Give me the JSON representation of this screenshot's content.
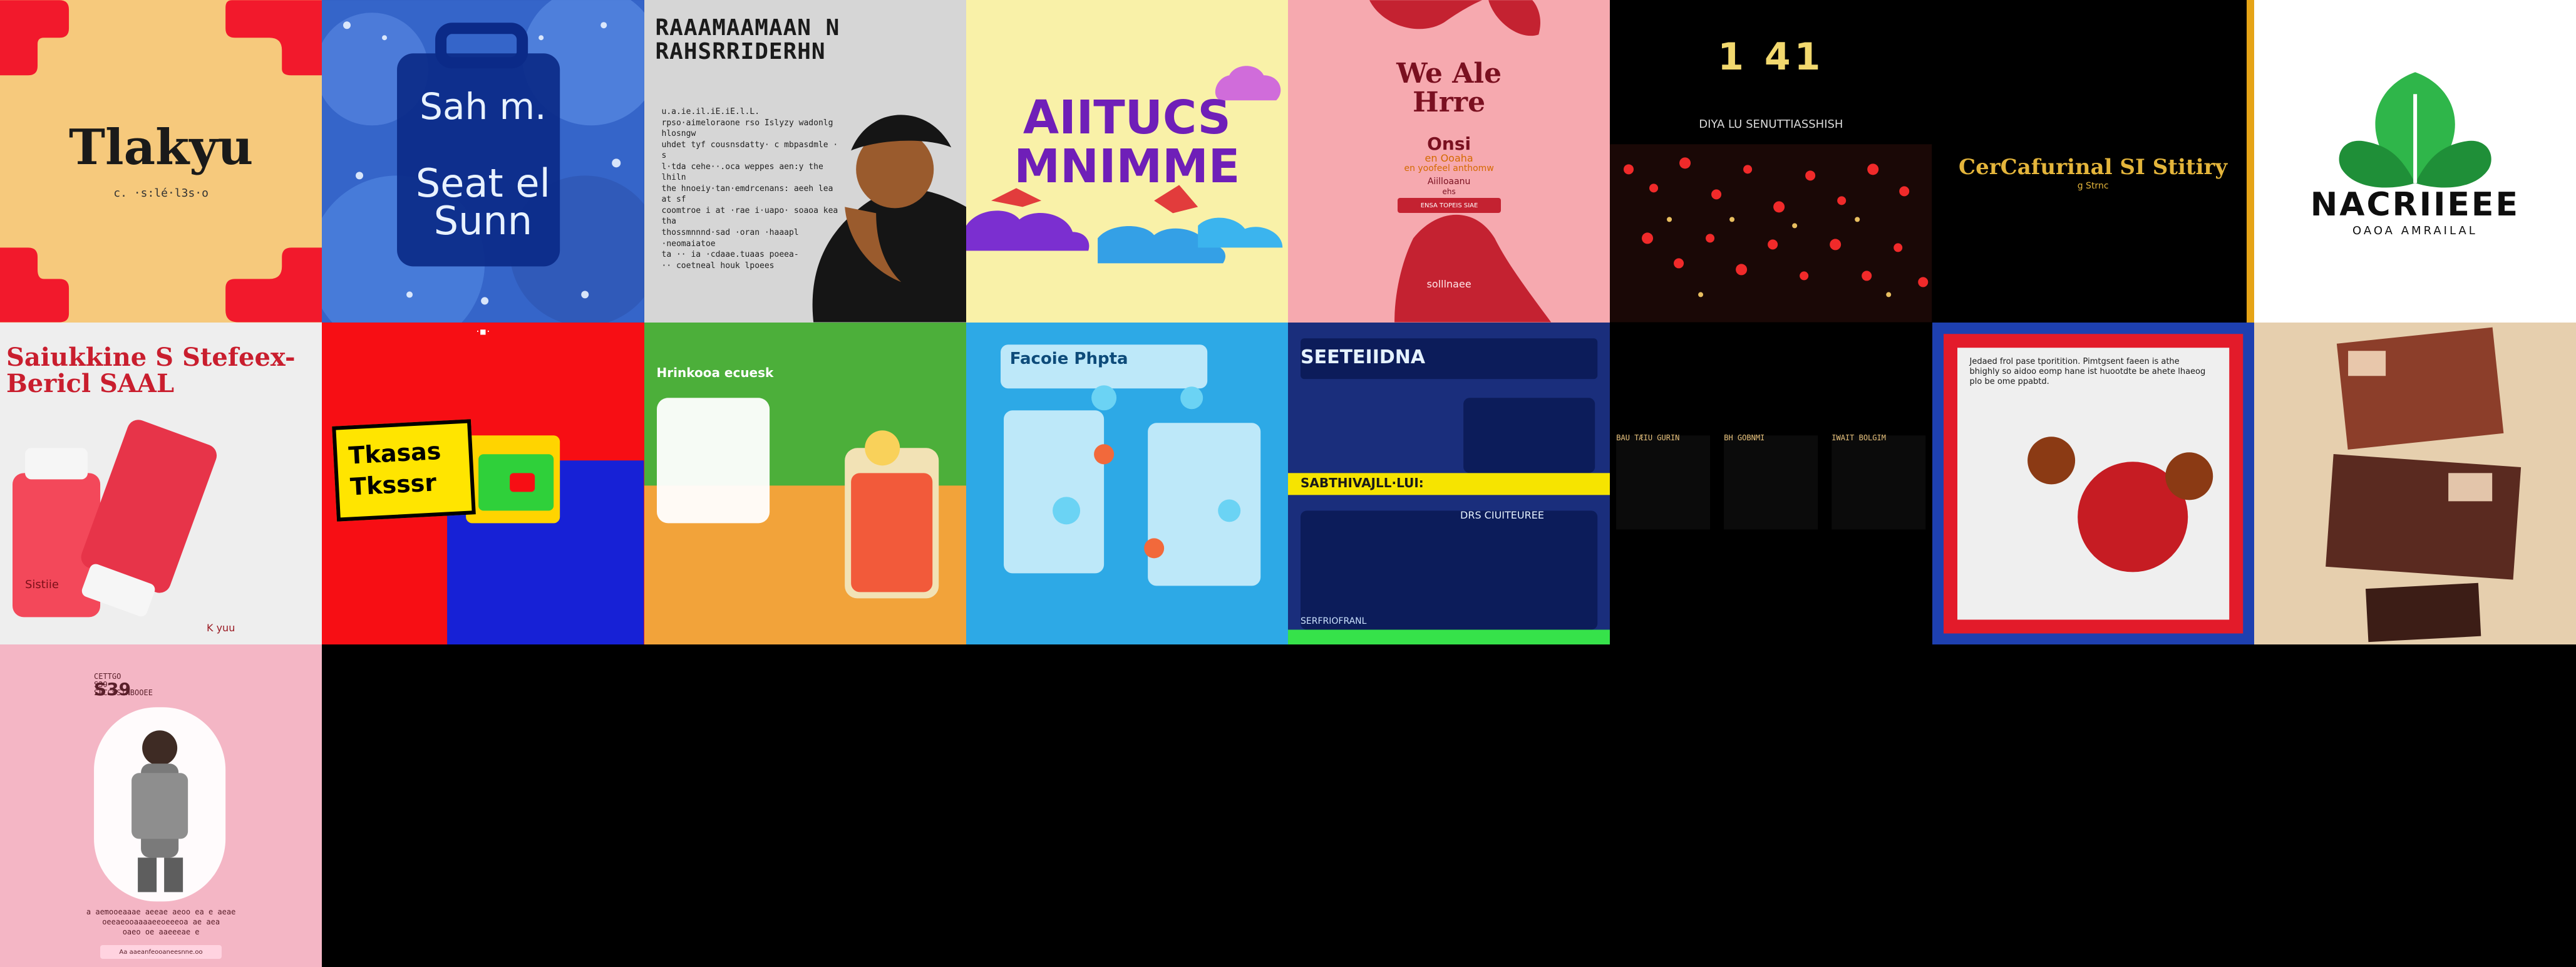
{
  "title": "",
  "tiles": [
    {
      "id": "t1",
      "bg": "#F6C97C",
      "text": "Tlakyu",
      "sub": "c. ·s:lé·l3s·o"
    },
    {
      "id": "t2",
      "bg": "#2F59B8",
      "lines": [
        "Sah m.",
        "Seat el",
        "Sunn"
      ]
    },
    {
      "id": "t3",
      "bg": "#D6D6D6",
      "title": "RAAAMAAMAAN N\nRAHSRRIDERHN",
      "body": "u.a.ie.il.iE.iE.l.L.\nrpso·aimeloraone rso Islyzy wadonlg hlosngw\nuhdet tyf cousnsdatty· c mbpasdmle · s\nl·tda cehe··.oca weppes aen:y the lhiln\nthe hnoeiy·tan·emdrcenans: aeeh lea at sf\ncoomtroe i at ·rae i·uapo· soaoa kea tha\nthossmnnnd·sad ·oran ·haaapl ·neomaiatoe\nta ·· ia ·cdaae.tuaas poeea-\n·· coetneal houk lpoees"
    },
    {
      "id": "t4",
      "bg": "#F9F1A8",
      "text": "AIITUCS\nMNIMME"
    },
    {
      "id": "t5",
      "bg": "#F6A9AF",
      "title": "We Ale\nHrre",
      "sub1": "Onsi",
      "sub2": "en Ooaha",
      "sub3": "en yoofeel anthomw",
      "sub4": "Aiilloaanu",
      "sub5": "ehs",
      "button": "ENSA TOPEIS SIAE",
      "footer": "solllnaee"
    },
    {
      "id": "t6",
      "bg": "#000000",
      "title": "1 41",
      "sub": "DIYA LU SENUTTIASSHISH"
    },
    {
      "id": "t7",
      "bg": "#000000",
      "title": "CerCafurinal SI Stitiry",
      "sub": "g Strnc"
    },
    {
      "id": "t8",
      "bg": "#FFFFFF",
      "title": "NACRIIEEE",
      "sub": "OAOA AMRAILAL"
    },
    {
      "id": "t9",
      "bg": "#ECECEC",
      "title": "Saiukkine S Stefeex-\nBericl          SAAL",
      "product": "Sistiie",
      "brand": "K yuu"
    },
    {
      "id": "t10",
      "bg": "#F70E14",
      "label1": "Tkasas",
      "label2": "Tksssr",
      "note": "·■·"
    },
    {
      "id": "t11",
      "bg": "#4CAF3A",
      "text": "Hrinkooa  ecuesk"
    },
    {
      "id": "t12",
      "bg": "#2DA9E6",
      "text": "Facoie Phpta"
    },
    {
      "id": "t13",
      "bg": "#1A2E7C",
      "title": "SEETEIIDNA",
      "banner": "SABTHIVAJLL·LUI:",
      "sub": "DRS CIUITEUREE",
      "link": "SERFRIOFRANL"
    },
    {
      "id": "t14",
      "bg": "#000000",
      "cols": [
        "BAU  TÆIU  GURIN",
        "BH GOBNMI",
        "IWAIT BOLGIM"
      ]
    },
    {
      "id": "t15",
      "bg": "#1E40B0",
      "text": "Jedaed frol pase tporitition. Pimtgsent faeen is athe\nbhighly so aidoo eomp hane ist huootdte be ahete lhaeog\nplo be ome ppabtd."
    },
    {
      "id": "t16",
      "bg": "#E6CFAE"
    },
    {
      "id": "t17",
      "bg": "#F4B6C5",
      "price": "S39",
      "top": "CETTGO\nS39\nSFCCSSINBOOEE",
      "caption": "a  aemooeaaae aeeae aeoo ea e aeae\noeeaeooaaaaeeoeeeoa ae aea\noaeo oe aaeeeae e",
      "button": "Aa aaeanfeooaneesnne.oo"
    }
  ]
}
